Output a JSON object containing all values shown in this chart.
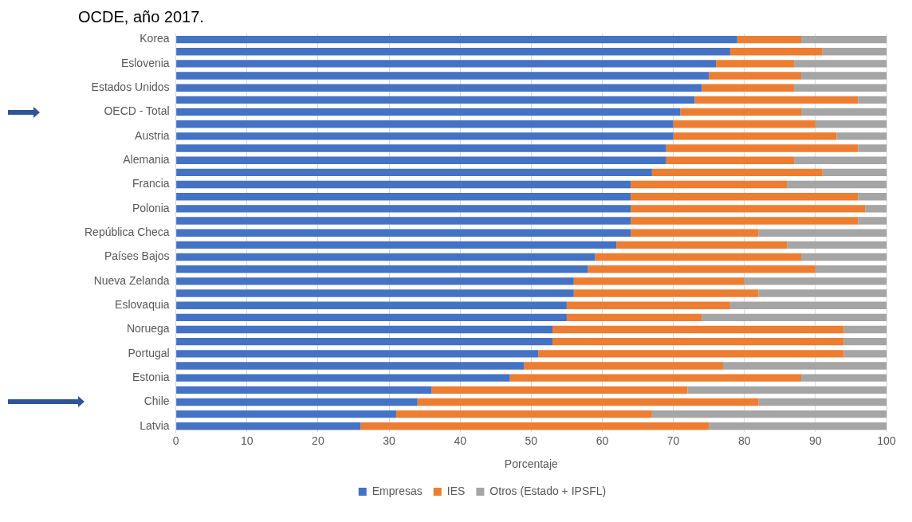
{
  "chart_data": {
    "type": "bar",
    "orientation": "horizontal",
    "stacked": true,
    "title": "OCDE, año 2017.",
    "xlabel": "Porcentaje",
    "categories": [
      "Korea",
      null,
      "Eslovenia",
      null,
      "Estados Unidos",
      null,
      "OECD - Total",
      null,
      "Austria",
      null,
      "Alemania",
      null,
      "Francia",
      null,
      "Polonia",
      null,
      "República Checa",
      null,
      "Países Bajos",
      null,
      "Nueva Zelanda",
      null,
      "Eslovaquia",
      null,
      "Noruega",
      null,
      "Portugal",
      null,
      "Estonia",
      null,
      "Chile",
      null,
      "Latvia"
    ],
    "series": [
      {
        "name": "Empresas",
        "color": "#4472c4",
        "values": [
          79,
          78,
          76,
          75,
          74,
          73,
          71,
          70,
          70,
          69,
          69,
          67,
          64,
          64,
          64,
          64,
          64,
          62,
          59,
          58,
          56,
          56,
          55,
          55,
          53,
          53,
          51,
          49,
          47,
          36,
          34,
          31,
          26
        ]
      },
      {
        "name": "IES",
        "color": "#ed7d31",
        "values": [
          9,
          13,
          11,
          13,
          13,
          23,
          17,
          20,
          23,
          27,
          18,
          24,
          22,
          32,
          33,
          32,
          18,
          24,
          29,
          32,
          24,
          26,
          23,
          19,
          41,
          41,
          43,
          28,
          41,
          36,
          48,
          36,
          49
        ]
      },
      {
        "name": "Otros (Estado + IPSFL)",
        "color": "#a5a5a5",
        "values": [
          12,
          9,
          13,
          12,
          13,
          4,
          12,
          10,
          7,
          4,
          13,
          9,
          14,
          4,
          3,
          4,
          18,
          14,
          12,
          10,
          20,
          18,
          22,
          26,
          6,
          6,
          6,
          23,
          12,
          28,
          18,
          33,
          25
        ]
      }
    ],
    "xlim": [
      0,
      100
    ],
    "xticks": [
      0,
      10,
      20,
      30,
      40,
      50,
      60,
      70,
      80,
      90,
      100
    ],
    "grid": "x",
    "legend": "bottom"
  }
}
